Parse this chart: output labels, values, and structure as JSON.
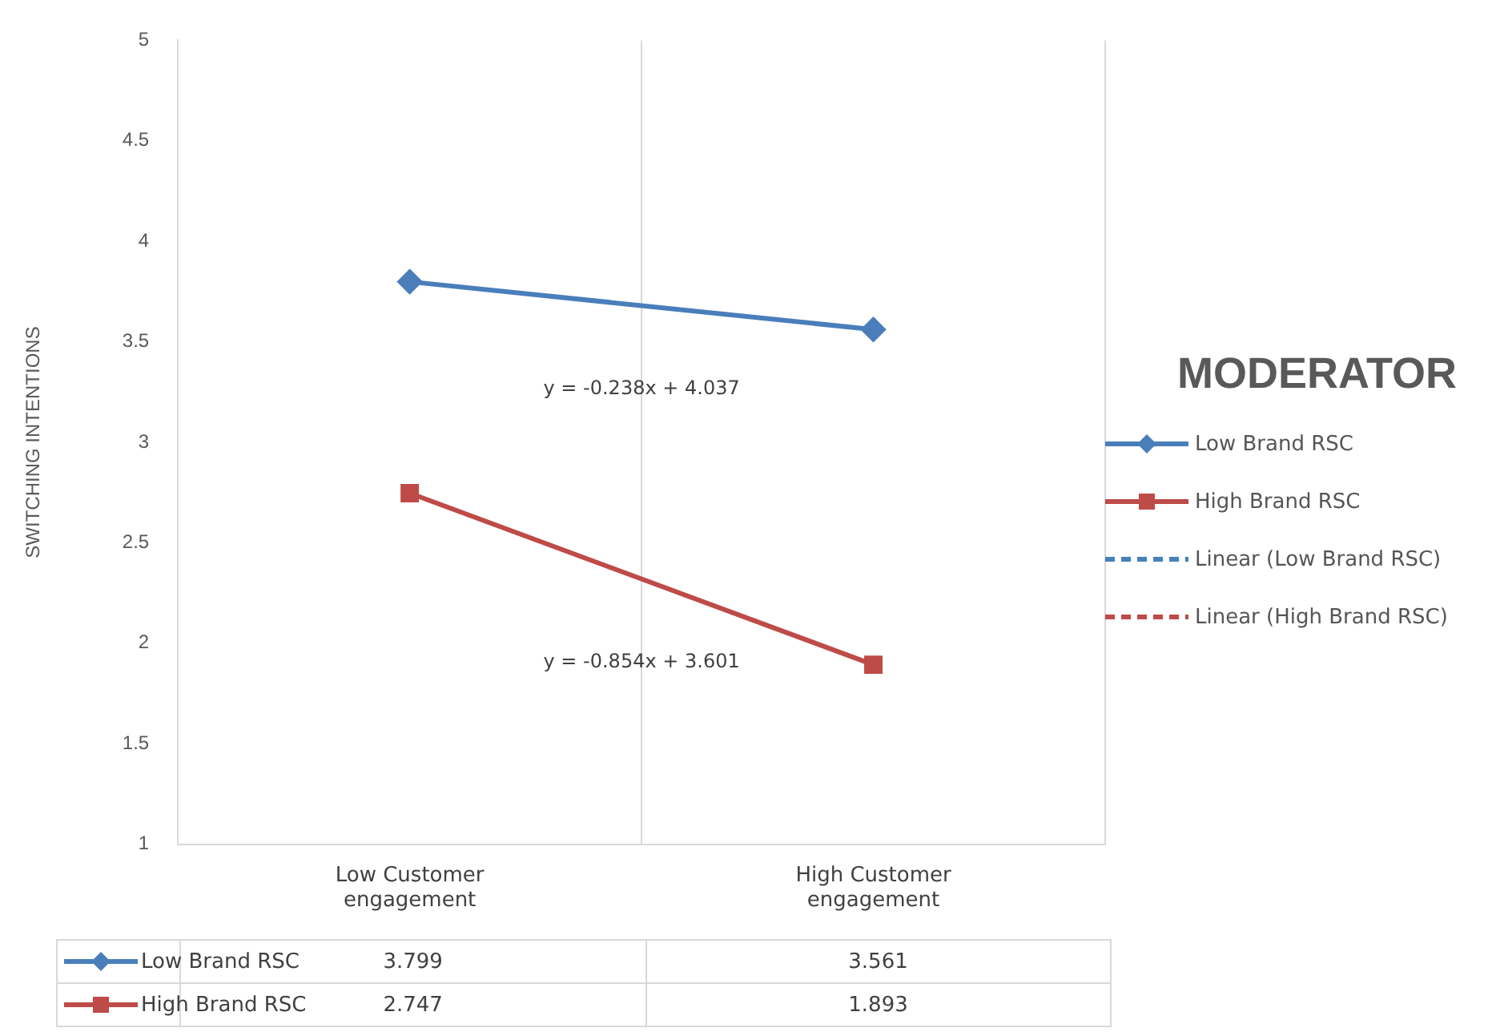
{
  "chart_data": {
    "type": "line",
    "ylabel": "SWITCHING INTENTIONS",
    "legend_title": "MODERATOR",
    "legend": "right",
    "grid": "x",
    "data_labels": true,
    "categories": [
      "Low Customer engagement",
      "High Customer engagement"
    ],
    "ylim": [
      1,
      5
    ],
    "yticks": [
      1,
      1.5,
      2,
      2.5,
      3,
      3.5,
      4,
      4.5,
      5
    ],
    "series": [
      {
        "name": "Low Brand RSC",
        "color": "#4a7ebb",
        "values": [
          3.799,
          3.561
        ],
        "marker": "diamond",
        "line_style": "solid"
      },
      {
        "name": "High Brand RSC",
        "color": "#be4b48",
        "values": [
          2.747,
          1.893
        ],
        "marker": "square",
        "line_style": "solid"
      },
      {
        "name": "Linear (Low Brand RSC)",
        "color": "#4a7ebb",
        "values": [
          null,
          null
        ],
        "line_style": "dashed"
      },
      {
        "name": "Linear (High Brand RSC)",
        "color": "#be4b48",
        "values": [
          null,
          null
        ],
        "line_style": "dashed"
      }
    ],
    "annotations": [
      "y = -0.238x + 4.037",
      "y = -0.854x + 3.601"
    ]
  }
}
